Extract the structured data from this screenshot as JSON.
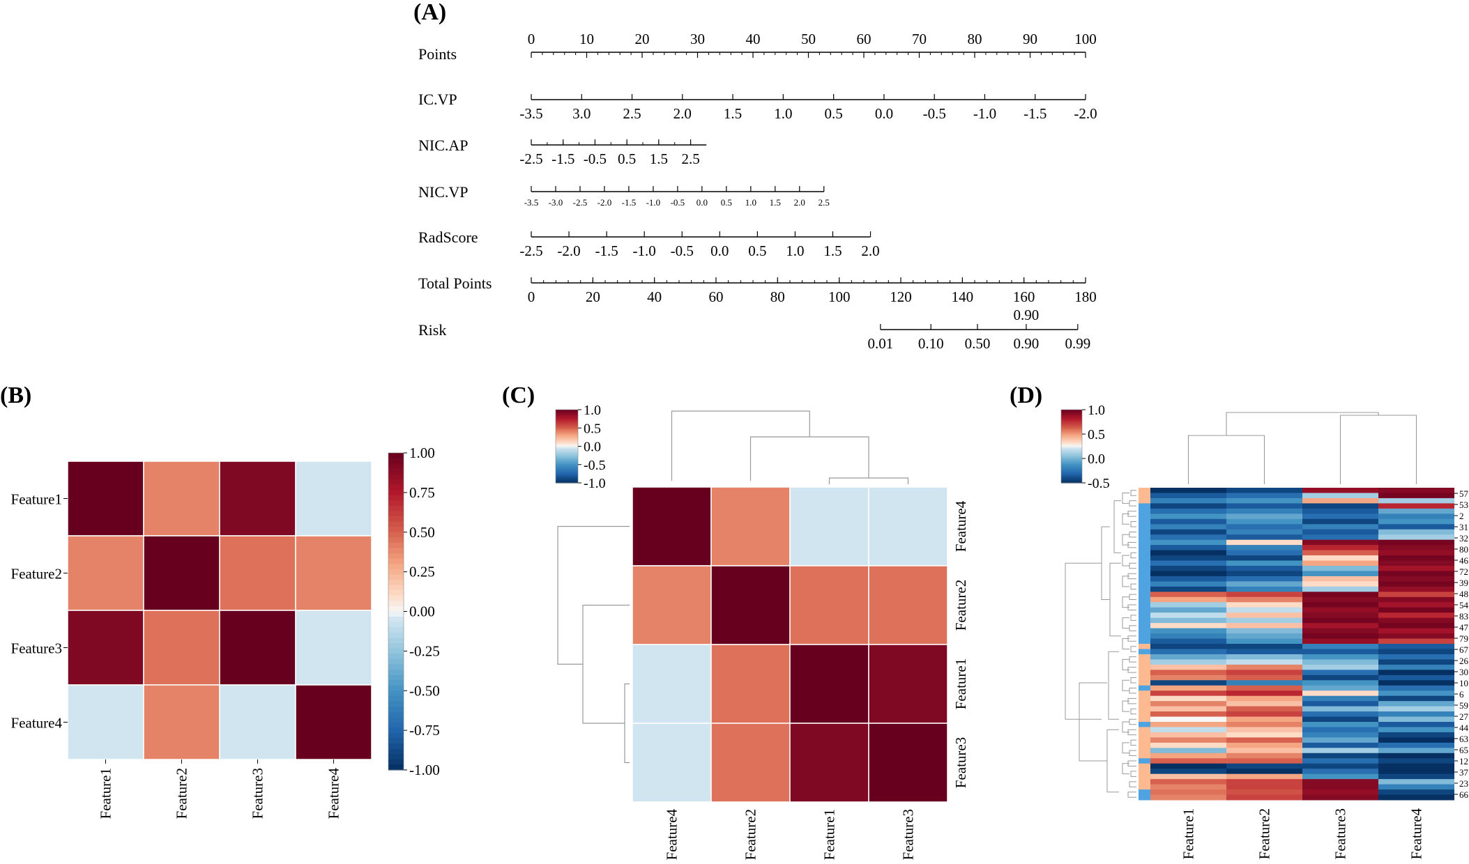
{
  "panel_labels": {
    "a": "(A)",
    "b": "(B)",
    "c": "(C)",
    "d": "(D)"
  },
  "chart_data": [
    {
      "type": "nomogram",
      "panel": "(A)",
      "rows": [
        {
          "name": "Points",
          "label_pos": "above",
          "ticks": [
            [
              0,
              "0"
            ],
            [
              10,
              "10"
            ],
            [
              20,
              "20"
            ],
            [
              30,
              "30"
            ],
            [
              40,
              "40"
            ],
            [
              50,
              "50"
            ],
            [
              60,
              "60"
            ],
            [
              70,
              "70"
            ],
            [
              80,
              "80"
            ],
            [
              90,
              "90"
            ],
            [
              100,
              "100"
            ]
          ],
          "minor_step": 2,
          "span": [
            0,
            100
          ]
        },
        {
          "name": "IC.VP",
          "label_pos": "below",
          "ticks": [
            [
              0,
              "-3.5"
            ],
            [
              9.09,
              "3.0"
            ],
            [
              18.18,
              "2.5"
            ],
            [
              27.27,
              "2.0"
            ],
            [
              36.36,
              "1.5"
            ],
            [
              45.45,
              "1.0"
            ],
            [
              54.55,
              "0.5"
            ],
            [
              63.64,
              "0.0"
            ],
            [
              72.73,
              "-0.5"
            ],
            [
              81.82,
              "-1.0"
            ],
            [
              90.91,
              "-1.5"
            ],
            [
              100,
              "-2.0"
            ]
          ],
          "span": [
            0,
            100
          ]
        },
        {
          "name": "NIC.AP",
          "label_pos": "below",
          "ticks": [
            [
              0,
              "-2.5"
            ],
            [
              5.75,
              "-1.5"
            ],
            [
              11.5,
              "-0.5"
            ],
            [
              17.25,
              "0.5"
            ],
            [
              23,
              "1.5"
            ],
            [
              28.75,
              "2.5"
            ]
          ],
          "minor_step": 2.875,
          "span": [
            0,
            31.6
          ]
        },
        {
          "name": "NIC.VP",
          "label_pos": "below",
          "small": true,
          "ticks": [
            [
              0,
              "-3.5"
            ],
            [
              4.4,
              "-3.0"
            ],
            [
              8.8,
              "-2.5"
            ],
            [
              13.2,
              "-2.0"
            ],
            [
              17.6,
              "-1.5"
            ],
            [
              22,
              "-1.0"
            ],
            [
              26.4,
              "-0.5"
            ],
            [
              30.8,
              "0.0"
            ],
            [
              35.2,
              "0.5"
            ],
            [
              39.6,
              "1.0"
            ],
            [
              44,
              "1.5"
            ],
            [
              48.4,
              "2.0"
            ],
            [
              52.8,
              "2.5"
            ]
          ],
          "span": [
            0,
            52.8
          ]
        },
        {
          "name": "RadScore",
          "label_pos": "below",
          "ticks": [
            [
              0,
              "-2.5"
            ],
            [
              6.8,
              "-2.0"
            ],
            [
              13.6,
              "-1.5"
            ],
            [
              20.4,
              "-1.0"
            ],
            [
              27.2,
              "-0.5"
            ],
            [
              34,
              "0.0"
            ],
            [
              40.8,
              "0.5"
            ],
            [
              47.6,
              "1.0"
            ],
            [
              54.4,
              "1.5"
            ],
            [
              61.2,
              "2.0"
            ]
          ],
          "span": [
            0,
            61.2
          ]
        },
        {
          "name": "Total Points",
          "label_pos": "below",
          "ticks": [
            [
              0,
              "0"
            ],
            [
              11.11,
              "20"
            ],
            [
              22.22,
              "40"
            ],
            [
              33.33,
              "60"
            ],
            [
              44.44,
              "80"
            ],
            [
              55.56,
              "100"
            ],
            [
              66.67,
              "120"
            ],
            [
              77.78,
              "140"
            ],
            [
              88.89,
              "160"
            ],
            [
              100,
              "180"
            ]
          ],
          "minor_step": 2.2222,
          "span": [
            0,
            100
          ]
        },
        {
          "name": "Risk",
          "label_pos": "below",
          "ticks": [
            [
              63,
              "0.01"
            ],
            [
              72.1,
              "0.10"
            ],
            [
              80.5,
              "0.50"
            ],
            [
              89.3,
              "0.90"
            ],
            [
              98.6,
              "0.99"
            ]
          ],
          "span": [
            63,
            98.6
          ]
        }
      ],
      "extra_label": {
        "text": "0.90",
        "position": 89.3
      }
    },
    {
      "type": "heatmap",
      "panel": "(B)",
      "rows": [
        "Feature1",
        "Feature2",
        "Feature3",
        "Feature4"
      ],
      "cols": [
        "Feature1",
        "Feature2",
        "Feature3",
        "Feature4"
      ],
      "values": [
        [
          1.0,
          0.4,
          0.92,
          -0.05
        ],
        [
          0.4,
          1.0,
          0.45,
          0.4
        ],
        [
          0.92,
          0.45,
          1.0,
          -0.05
        ],
        [
          -0.05,
          0.4,
          -0.05,
          1.0
        ]
      ],
      "colorbar": {
        "ticks": [
          "1.00",
          "0.75",
          "0.50",
          "0.25",
          "0.00",
          "-0.25",
          "-0.50",
          "-0.75",
          "-1.00"
        ],
        "range": [
          -1,
          1
        ]
      }
    },
    {
      "type": "clustermap",
      "panel": "(C)",
      "rows": [
        "Feature4",
        "Feature2",
        "Feature1",
        "Feature3"
      ],
      "cols": [
        "Feature4",
        "Feature2",
        "Feature1",
        "Feature3"
      ],
      "values": [
        [
          1.0,
          0.4,
          -0.05,
          -0.05
        ],
        [
          0.4,
          1.0,
          0.45,
          0.45
        ],
        [
          -0.05,
          0.45,
          1.0,
          0.92
        ],
        [
          -0.05,
          0.45,
          0.92,
          1.0
        ]
      ],
      "colorbar": {
        "ticks": [
          "1.0",
          "0.5",
          "0.0",
          "-0.5",
          "-1.0"
        ],
        "range": [
          -1,
          1
        ]
      }
    },
    {
      "type": "clustermap",
      "panel": "(D)",
      "cols": [
        "Feature1",
        "Feature2",
        "Feature3",
        "Feature4"
      ],
      "row_labels": [
        "57",
        "53",
        "2",
        "31",
        "32",
        "80",
        "46",
        "72",
        "39",
        "48",
        "54",
        "83",
        "47",
        "79",
        "67",
        "26",
        "30",
        "10",
        "6",
        "59",
        "27",
        "44",
        "63",
        "65",
        "12",
        "37",
        "23",
        "66"
      ],
      "group_colors": {
        "group_a": "#fdb98f",
        "group_b": "#4ea3e0"
      },
      "colorbar": {
        "ticks": [
          "1.0",
          "0.5",
          "0.0",
          "-0.5"
        ],
        "range": [
          -1,
          1
        ]
      },
      "values": [
        [
          -1.0,
          -0.9,
          0.85,
          0.9
        ],
        [
          -0.8,
          -0.7,
          -0.2,
          0.95
        ],
        [
          -0.6,
          -0.5,
          0.3,
          -0.2
        ],
        [
          -0.9,
          -0.8,
          -0.9,
          0.7
        ],
        [
          -0.7,
          -0.6,
          -0.8,
          -0.4
        ],
        [
          -0.5,
          -0.4,
          -0.7,
          -0.6
        ],
        [
          -0.8,
          -0.5,
          -0.9,
          -0.5
        ],
        [
          -0.6,
          -0.7,
          -0.6,
          -0.8
        ],
        [
          -0.9,
          -0.6,
          -0.8,
          -0.3
        ],
        [
          -0.7,
          -0.8,
          -0.7,
          -0.2
        ],
        [
          -0.5,
          0.1,
          0.9,
          0.95
        ],
        [
          -0.8,
          -0.6,
          0.7,
          0.9
        ],
        [
          -1.0,
          -0.7,
          0.5,
          0.85
        ],
        [
          -0.9,
          -0.9,
          0.1,
          0.95
        ],
        [
          -0.7,
          -0.5,
          0.3,
          0.9
        ],
        [
          -0.9,
          -0.8,
          -0.3,
          0.8
        ],
        [
          -1.0,
          -0.9,
          -0.5,
          0.95
        ],
        [
          -0.8,
          -0.7,
          0.2,
          0.9
        ],
        [
          -0.6,
          -0.4,
          0.1,
          0.95
        ],
        [
          -0.9,
          -0.6,
          -0.2,
          0.85
        ],
        [
          0.5,
          0.6,
          0.95,
          0.6
        ],
        [
          0.3,
          0.4,
          0.9,
          0.9
        ],
        [
          -0.2,
          0.1,
          0.95,
          0.8
        ],
        [
          -0.4,
          -0.1,
          0.85,
          0.95
        ],
        [
          -0.1,
          0.2,
          0.9,
          0.7
        ],
        [
          -0.3,
          -0.2,
          0.95,
          0.9
        ],
        [
          0.1,
          0.2,
          0.8,
          0.95
        ],
        [
          -0.5,
          -0.3,
          0.9,
          0.8
        ],
        [
          -0.6,
          -0.4,
          0.95,
          0.9
        ],
        [
          -0.8,
          -0.5,
          0.85,
          0.6
        ],
        [
          -0.9,
          -0.9,
          -0.6,
          -0.8
        ],
        [
          -0.7,
          -0.8,
          -0.8,
          -0.9
        ],
        [
          -0.4,
          -0.3,
          -0.5,
          -0.7
        ],
        [
          -0.2,
          -0.1,
          -0.3,
          -0.9
        ],
        [
          0.2,
          0.4,
          -0.2,
          -0.6
        ],
        [
          0.5,
          0.6,
          -0.7,
          -1.0
        ],
        [
          0.4,
          0.5,
          -0.9,
          -0.8
        ],
        [
          -0.9,
          -0.6,
          -0.5,
          -1.0
        ],
        [
          0.3,
          0.5,
          -0.4,
          -0.7
        ],
        [
          0.6,
          0.7,
          0.1,
          -0.5
        ],
        [
          0.1,
          0.3,
          -0.6,
          -0.9
        ],
        [
          0.4,
          0.2,
          -0.8,
          -0.4
        ],
        [
          0.2,
          0.5,
          -0.3,
          -0.2
        ],
        [
          0.5,
          0.6,
          -0.7,
          -0.6
        ],
        [
          0.0,
          0.3,
          -0.9,
          -0.3
        ],
        [
          0.3,
          0.4,
          -0.5,
          -0.8
        ],
        [
          -0.1,
          0.2,
          -0.7,
          -0.5
        ],
        [
          0.2,
          0.1,
          -0.6,
          -0.9
        ],
        [
          0.4,
          0.5,
          -0.4,
          -1.0
        ],
        [
          0.1,
          0.3,
          -0.8,
          -0.7
        ],
        [
          -0.3,
          0.2,
          -0.2,
          -0.4
        ],
        [
          0.3,
          0.4,
          -0.9,
          -1.0
        ],
        [
          0.5,
          0.5,
          -0.7,
          -0.9
        ],
        [
          -1.0,
          -0.9,
          -0.9,
          -1.0
        ],
        [
          -0.9,
          -1.0,
          -0.7,
          -1.0
        ],
        [
          0.2,
          0.3,
          -0.5,
          -0.9
        ],
        [
          0.5,
          0.6,
          0.9,
          -0.3
        ],
        [
          0.4,
          0.6,
          0.9,
          -0.6
        ],
        [
          0.45,
          0.55,
          0.85,
          -0.9
        ],
        [
          0.4,
          0.6,
          0.9,
          -1.0
        ]
      ]
    }
  ]
}
